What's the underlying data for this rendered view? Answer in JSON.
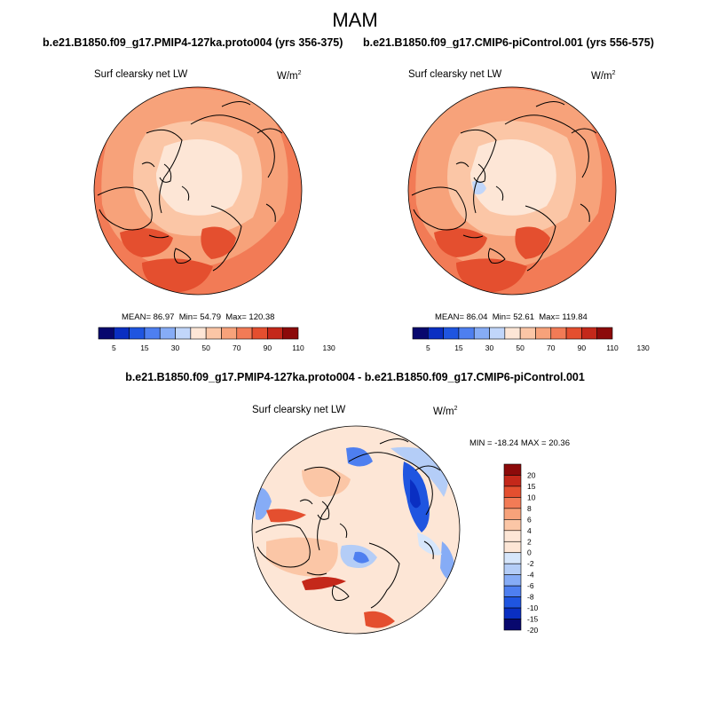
{
  "figure": {
    "title": "MAM"
  },
  "chart_data": [
    {
      "type": "heatmap",
      "projection": "north polar stereographic",
      "title": "b.e21.B1850.f09_g17.PMIP4-127ka.proto004 (yrs 356-375)",
      "variable": "Surf clearsky net LW",
      "units_base": "W/m",
      "units_exp": "2",
      "stats": {
        "mean_label": "MEAN=",
        "mean": "86.97",
        "min_label": "Min=",
        "min": "54.79",
        "max_label": "Max=",
        "max": "120.38"
      },
      "colorbar": {
        "orientation": "horizontal",
        "levels": [
          "5",
          "15",
          "30",
          "50",
          "70",
          "90",
          "110",
          "130"
        ],
        "colors": [
          "#08086e",
          "#0a2fc2",
          "#1f55e0",
          "#4e7ff0",
          "#86acf6",
          "#c1d6fa",
          "#fde6d6",
          "#fbc6a6",
          "#f7a27a",
          "#f27b56",
          "#e44f2f",
          "#c4281a",
          "#8c0a0a"
        ]
      }
    },
    {
      "type": "heatmap",
      "projection": "north polar stereographic",
      "title": "b.e21.B1850.f09_g17.CMIP6-piControl.001 (yrs 556-575)",
      "variable": "Surf clearsky net LW",
      "units_base": "W/m",
      "units_exp": "2",
      "stats": {
        "mean_label": "MEAN=",
        "mean": "86.04",
        "min_label": "Min=",
        "min": "52.61",
        "max_label": "Max=",
        "max": "119.84"
      },
      "colorbar": {
        "orientation": "horizontal",
        "levels": [
          "5",
          "15",
          "30",
          "50",
          "70",
          "90",
          "110",
          "130"
        ],
        "colors": [
          "#08086e",
          "#0a2fc2",
          "#1f55e0",
          "#4e7ff0",
          "#86acf6",
          "#c1d6fa",
          "#fde6d6",
          "#fbc6a6",
          "#f7a27a",
          "#f27b56",
          "#e44f2f",
          "#c4281a",
          "#8c0a0a"
        ]
      }
    },
    {
      "type": "heatmap",
      "projection": "north polar stereographic",
      "title": "b.e21.B1850.f09_g17.PMIP4-127ka.proto004 - b.e21.B1850.f09_g17.CMIP6-piControl.001",
      "variable": "Surf clearsky net LW",
      "units_base": "W/m",
      "units_exp": "2",
      "stats": {
        "text": "MIN = -18.24  MAX =  20.36"
      },
      "colorbar": {
        "orientation": "vertical",
        "levels": [
          "20",
          "15",
          "10",
          "8",
          "6",
          "4",
          "2",
          "0",
          "-2",
          "-4",
          "-6",
          "-8",
          "-10",
          "-15",
          "-20"
        ],
        "colors": [
          "#8c0a0a",
          "#c4281a",
          "#e44f2f",
          "#f27b56",
          "#f7a27a",
          "#fbc6a6",
          "#fde6d6",
          "#fde6d6",
          "#d6e6fb",
          "#b4cdf7",
          "#86acf6",
          "#4e7ff0",
          "#1f55e0",
          "#0a2fc2",
          "#08086e"
        ]
      }
    }
  ]
}
